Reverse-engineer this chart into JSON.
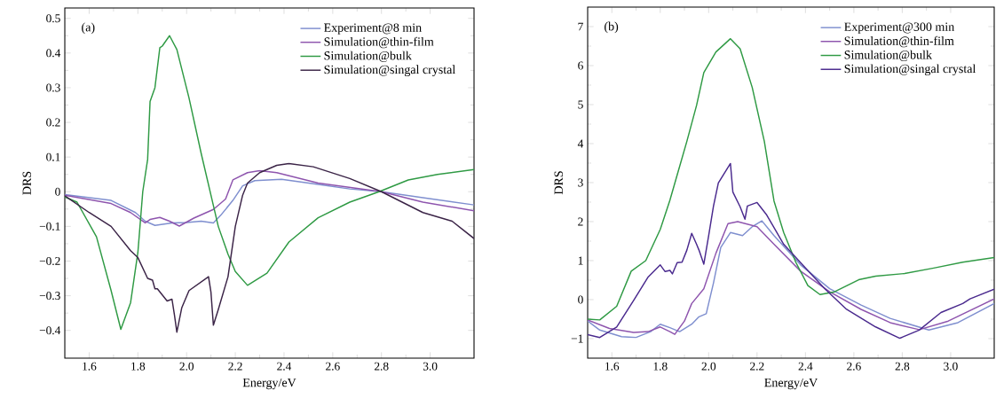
{
  "chart_data": [
    {
      "type": "line",
      "xlabel": "Energy/eV",
      "ylabel": "DRS",
      "annotations": [
        "(a)"
      ],
      "legend": "top right",
      "xlim": [
        1.5,
        3.18
      ],
      "ylim": [
        -0.48,
        0.53
      ],
      "xticks": [
        {
          "value": 1.6,
          "label": "1.6"
        },
        {
          "value": 1.8,
          "label": "1.8"
        },
        {
          "value": 2.0,
          "label": "2.0"
        },
        {
          "value": 2.2,
          "label": "2.2"
        },
        {
          "value": 2.4,
          "label": "2.4"
        },
        {
          "value": 2.6,
          "label": "2.6"
        },
        {
          "value": 2.8,
          "label": "2.8"
        },
        {
          "value": 3.0,
          "label": "3.0"
        }
      ],
      "yticks": [
        {
          "value": -0.4,
          "label": "−0.4"
        },
        {
          "value": -0.3,
          "label": "−0.3"
        },
        {
          "value": -0.2,
          "label": "−0.2"
        },
        {
          "value": -0.1,
          "label": "−0.1"
        },
        {
          "value": 0,
          "label": "0"
        },
        {
          "value": 0.1,
          "label": "0.1"
        },
        {
          "value": 0.2,
          "label": "0.2"
        },
        {
          "value": 0.3,
          "label": "0.3"
        },
        {
          "value": 0.4,
          "label": "0.4"
        },
        {
          "value": 0.5,
          "label": "0.5"
        }
      ],
      "series": [
        {
          "name": "Experiment@8 min",
          "color": "#7f8fcf",
          "x": [
            1.5,
            1.69,
            1.79,
            1.83,
            1.87,
            1.94,
            2.0,
            2.06,
            2.11,
            2.14,
            2.19,
            2.23,
            2.28,
            2.39,
            2.54,
            2.67,
            2.8,
            2.97,
            3.18
          ],
          "values": [
            -0.008,
            -0.025,
            -0.06,
            -0.085,
            -0.097,
            -0.09,
            -0.089,
            -0.085,
            -0.09,
            -0.068,
            -0.025,
            0.017,
            0.032,
            0.036,
            0.021,
            0.008,
            0,
            -0.017,
            -0.038
          ]
        },
        {
          "name": "Simulation@thin-film",
          "color": "#8e55ae",
          "x": [
            1.5,
            1.69,
            1.77,
            1.83,
            1.85,
            1.89,
            1.93,
            1.97,
            2.03,
            2.11,
            2.16,
            2.19,
            2.25,
            2.3,
            2.37,
            2.54,
            2.8,
            2.97,
            3.18
          ],
          "values": [
            -0.01,
            -0.034,
            -0.06,
            -0.09,
            -0.08,
            -0.074,
            -0.085,
            -0.099,
            -0.076,
            -0.051,
            -0.021,
            0.034,
            0.055,
            0.061,
            0.055,
            0.025,
            0,
            -0.03,
            -0.055
          ]
        },
        {
          "name": "Simulation@bulk",
          "color": "#2f9a44",
          "x": [
            1.5,
            1.55,
            1.63,
            1.69,
            1.73,
            1.77,
            1.8,
            1.82,
            1.84,
            1.85,
            1.87,
            1.89,
            1.9,
            1.93,
            1.96,
            2.01,
            2.06,
            2.11,
            2.13,
            2.17,
            2.2,
            2.25,
            2.33,
            2.42,
            2.54,
            2.67,
            2.79,
            2.91,
            3.03,
            3.18
          ],
          "values": [
            -0.015,
            -0.03,
            -0.13,
            -0.285,
            -0.397,
            -0.32,
            -0.175,
            0.0,
            0.093,
            0.26,
            0.3,
            0.415,
            0.42,
            0.45,
            0.41,
            0.27,
            0.11,
            -0.04,
            -0.1,
            -0.18,
            -0.23,
            -0.27,
            -0.235,
            -0.145,
            -0.075,
            -0.03,
            0,
            0.034,
            0.05,
            0.064
          ]
        },
        {
          "name": "Simulation@singal crystal",
          "color": "#3b2447",
          "x": [
            1.5,
            1.6,
            1.69,
            1.77,
            1.8,
            1.84,
            1.86,
            1.87,
            1.88,
            1.92,
            1.94,
            1.95,
            1.96,
            1.98,
            2.01,
            2.06,
            2.09,
            2.1,
            2.11,
            2.13,
            2.17,
            2.2,
            2.23,
            2.25,
            2.3,
            2.37,
            2.42,
            2.52,
            2.67,
            2.8,
            2.97,
            3.09,
            3.18
          ],
          "values": [
            -0.012,
            -0.06,
            -0.1,
            -0.17,
            -0.19,
            -0.25,
            -0.255,
            -0.28,
            -0.28,
            -0.315,
            -0.31,
            -0.355,
            -0.405,
            -0.335,
            -0.285,
            -0.26,
            -0.245,
            -0.29,
            -0.385,
            -0.34,
            -0.245,
            -0.1,
            -0.01,
            0.025,
            0.055,
            0.076,
            0.081,
            0.072,
            0.038,
            0,
            -0.06,
            -0.085,
            -0.135
          ]
        }
      ]
    },
    {
      "type": "line",
      "xlabel": "Energy/eV",
      "ylabel": "DRS",
      "annotations": [
        "(b)"
      ],
      "legend": "top right",
      "xlim": [
        1.5,
        3.18
      ],
      "ylim": [
        -1.5,
        7.5
      ],
      "xticks": [
        {
          "value": 1.6,
          "label": "1.6"
        },
        {
          "value": 1.8,
          "label": "1.8"
        },
        {
          "value": 2.0,
          "label": "2.0"
        },
        {
          "value": 2.2,
          "label": "2.2"
        },
        {
          "value": 2.4,
          "label": "2.4"
        },
        {
          "value": 2.6,
          "label": "2.6"
        },
        {
          "value": 2.8,
          "label": "2.8"
        },
        {
          "value": 3.0,
          "label": "3.0"
        }
      ],
      "yticks": [
        {
          "value": -1,
          "label": "−1"
        },
        {
          "value": 0,
          "label": "0"
        },
        {
          "value": 1,
          "label": "1"
        },
        {
          "value": 2,
          "label": "2"
        },
        {
          "value": 3,
          "label": "3"
        },
        {
          "value": 4,
          "label": "4"
        },
        {
          "value": 5,
          "label": "5"
        },
        {
          "value": 6,
          "label": "6"
        },
        {
          "value": 7,
          "label": "7"
        }
      ],
      "series": [
        {
          "name": "Experiment@300 min",
          "color": "#7f8fcf",
          "x": [
            1.5,
            1.55,
            1.64,
            1.7,
            1.76,
            1.8,
            1.84,
            1.88,
            1.93,
            1.96,
            1.99,
            2.02,
            2.05,
            2.09,
            2.14,
            2.18,
            2.22,
            2.27,
            2.38,
            2.5,
            2.63,
            2.75,
            2.91,
            3.03,
            3.18
          ],
          "values": [
            -0.55,
            -0.78,
            -0.95,
            -0.97,
            -0.82,
            -0.63,
            -0.72,
            -0.82,
            -0.63,
            -0.44,
            -0.36,
            0.43,
            1.34,
            1.72,
            1.64,
            1.87,
            2.02,
            1.64,
            0.89,
            0.28,
            -0.14,
            -0.48,
            -0.78,
            -0.59,
            -0.1
          ]
        },
        {
          "name": "Simulation@thin-film",
          "color": "#8e55ae",
          "x": [
            1.5,
            1.59,
            1.69,
            1.75,
            1.8,
            1.84,
            1.86,
            1.9,
            1.93,
            1.98,
            2.03,
            2.08,
            2.12,
            2.2,
            2.27,
            2.38,
            2.5,
            2.63,
            2.75,
            2.87,
            2.99,
            3.18
          ],
          "values": [
            -0.52,
            -0.74,
            -0.84,
            -0.82,
            -0.7,
            -0.82,
            -0.89,
            -0.55,
            -0.1,
            0.28,
            1.19,
            1.95,
            2.0,
            1.87,
            1.42,
            0.73,
            0.2,
            -0.25,
            -0.59,
            -0.77,
            -0.55,
            0.02
          ]
        },
        {
          "name": "Simulation@bulk",
          "color": "#2f9a44",
          "x": [
            1.5,
            1.55,
            1.62,
            1.68,
            1.74,
            1.8,
            1.84,
            1.87,
            1.91,
            1.95,
            1.98,
            2.03,
            2.09,
            2.13,
            2.18,
            2.23,
            2.27,
            2.31,
            2.36,
            2.41,
            2.46,
            2.52,
            2.62,
            2.69,
            2.81,
            2.93,
            3.05,
            3.18
          ],
          "values": [
            -0.5,
            -0.52,
            -0.17,
            0.73,
            1.0,
            1.8,
            2.55,
            3.2,
            4.06,
            4.98,
            5.82,
            6.35,
            6.69,
            6.43,
            5.44,
            4.06,
            2.53,
            1.72,
            0.96,
            0.36,
            0.13,
            0.2,
            0.51,
            0.6,
            0.67,
            0.81,
            0.96,
            1.08
          ]
        },
        {
          "name": "Simulation@singal crystal",
          "color": "#4a2a8e",
          "x": [
            1.5,
            1.55,
            1.62,
            1.69,
            1.75,
            1.8,
            1.82,
            1.84,
            1.85,
            1.87,
            1.89,
            1.91,
            1.93,
            1.95,
            1.96,
            1.98,
            2.0,
            2.02,
            2.04,
            2.09,
            2.1,
            2.13,
            2.15,
            2.16,
            2.2,
            2.24,
            2.31,
            2.4,
            2.48,
            2.57,
            2.69,
            2.79,
            2.87,
            2.96,
            3.05,
            3.08,
            3.18
          ],
          "values": [
            -0.9,
            -0.97,
            -0.7,
            -0.02,
            0.58,
            0.89,
            0.72,
            0.75,
            0.66,
            0.95,
            0.96,
            1.27,
            1.7,
            1.42,
            1.27,
            0.91,
            1.64,
            2.4,
            2.99,
            3.49,
            2.76,
            2.38,
            2.06,
            2.4,
            2.49,
            2.17,
            1.42,
            0.81,
            0.28,
            -0.25,
            -0.7,
            -0.99,
            -0.78,
            -0.33,
            -0.1,
            0.02,
            0.27
          ]
        }
      ]
    }
  ]
}
